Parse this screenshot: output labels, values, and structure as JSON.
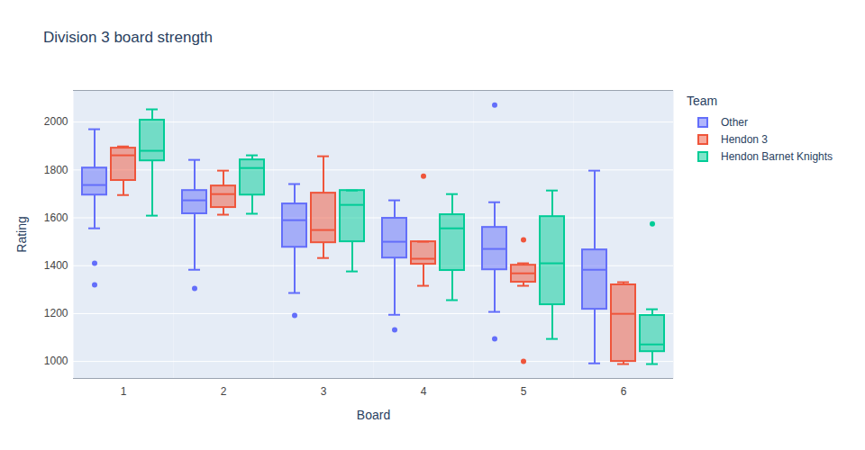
{
  "chart_data": {
    "type": "box",
    "title": "Division 3 board strength",
    "x_label": "Board",
    "y_label": "Rating",
    "legend_title": "Team",
    "categories": [
      1,
      2,
      3,
      4,
      5,
      6
    ],
    "ylim": [
      929,
      2132
    ],
    "yticks": [
      1000,
      1200,
      1400,
      1600,
      1800,
      2000
    ],
    "grid": true,
    "legend": "right",
    "series": [
      {
        "name": "Other",
        "color": "#636efa",
        "boxes": [
          {
            "min": 1556,
            "q1": 1695,
            "median": 1737,
            "q3": 1808,
            "max": 1970,
            "outliers": [
              1410,
              1320
            ]
          },
          {
            "min": 1383,
            "q1": 1617,
            "median": 1673,
            "q3": 1714,
            "max": 1842,
            "outliers": [
              1305
            ]
          },
          {
            "min": 1286,
            "q1": 1477,
            "median": 1590,
            "q3": 1658,
            "max": 1741,
            "outliers": [
              1192
            ]
          },
          {
            "min": 1195,
            "q1": 1432,
            "median": 1500,
            "q3": 1598,
            "max": 1673,
            "outliers": [
              1132
            ]
          },
          {
            "min": 1207,
            "q1": 1383,
            "median": 1470,
            "q3": 1560,
            "max": 1665,
            "outliers": [
              2071,
              1094
            ]
          },
          {
            "min": 992,
            "q1": 1218,
            "median": 1383,
            "q3": 1466,
            "max": 1797,
            "outliers": []
          }
        ]
      },
      {
        "name": "Hendon 3",
        "color": "#ef553b",
        "boxes": [
          {
            "min": 1695,
            "q1": 1756,
            "median": 1861,
            "q3": 1891,
            "max": 1898,
            "outliers": []
          },
          {
            "min": 1613,
            "q1": 1643,
            "median": 1699,
            "q3": 1733,
            "max": 1797,
            "outliers": []
          },
          {
            "min": 1432,
            "q1": 1496,
            "median": 1549,
            "q3": 1703,
            "max": 1857,
            "outliers": []
          },
          {
            "min": 1316,
            "q1": 1406,
            "median": 1429,
            "q3": 1500,
            "max": 1500,
            "outliers": [
              1774
            ]
          },
          {
            "min": 1316,
            "q1": 1331,
            "median": 1368,
            "q3": 1402,
            "max": 1410,
            "outliers": [
              1508,
              1000
            ]
          },
          {
            "min": 989,
            "q1": 1000,
            "median": 1199,
            "q3": 1320,
            "max": 1331,
            "outliers": []
          }
        ]
      },
      {
        "name": "Hendon Barnet Knights",
        "color": "#00cc96",
        "boxes": [
          {
            "min": 1609,
            "q1": 1838,
            "median": 1880,
            "q3": 2008,
            "max": 2053,
            "outliers": []
          },
          {
            "min": 1617,
            "q1": 1695,
            "median": 1808,
            "q3": 1842,
            "max": 1861,
            "outliers": []
          },
          {
            "min": 1376,
            "q1": 1500,
            "median": 1654,
            "q3": 1714,
            "max": 1714,
            "outliers": []
          },
          {
            "min": 1256,
            "q1": 1380,
            "median": 1556,
            "q3": 1613,
            "max": 1699,
            "outliers": []
          },
          {
            "min": 1094,
            "q1": 1237,
            "median": 1410,
            "q3": 1605,
            "max": 1714,
            "outliers": []
          },
          {
            "min": 989,
            "q1": 1041,
            "median": 1071,
            "q3": 1192,
            "max": 1218,
            "outliers": [
              1575
            ]
          }
        ]
      }
    ]
  }
}
